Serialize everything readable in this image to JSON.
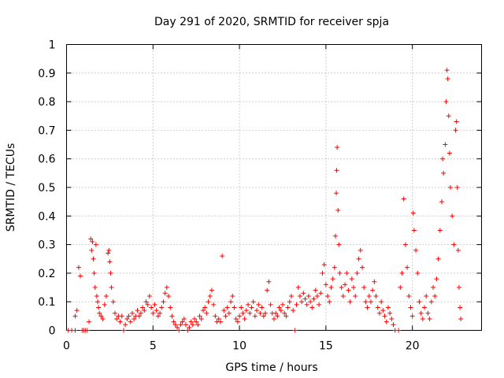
{
  "chart_data": {
    "type": "scatter",
    "title": "Day 291 of 2020, SRMTID for receiver spja",
    "xlabel": "GPS time / hours",
    "ylabel": "SRMTID / TECUs",
    "xlim": [
      0,
      24
    ],
    "ylim": [
      0,
      1
    ],
    "xticks": [
      0,
      5,
      10,
      15,
      20
    ],
    "yticks": [
      0,
      0.1,
      0.2,
      0.3,
      0.4,
      0.5,
      0.6,
      0.7,
      0.8,
      0.9,
      1
    ],
    "xtick_labels": [
      "0",
      "5",
      "10",
      "15",
      "20"
    ],
    "ytick_labels": [
      "0",
      "0.1",
      "0.2",
      "0.3",
      "0.4",
      "0.5",
      "0.6",
      "0.7",
      "0.8",
      "0.9",
      "1"
    ],
    "grid": true,
    "marker": "plus",
    "color": "#ff0000",
    "series": [
      {
        "name": "SRMTID",
        "points": [
          [
            0.1,
            0.0
          ],
          [
            0.3,
            0.0
          ],
          [
            0.5,
            0.0
          ],
          [
            0.5,
            0.05
          ],
          [
            0.6,
            0.07
          ],
          [
            0.7,
            0.22
          ],
          [
            0.8,
            0.19
          ],
          [
            0.9,
            0.0
          ],
          [
            1.0,
            0.0
          ],
          [
            1.1,
            0.0
          ],
          [
            1.2,
            0.0
          ],
          [
            1.3,
            0.03
          ],
          [
            1.4,
            0.32
          ],
          [
            1.45,
            0.28
          ],
          [
            1.5,
            0.31
          ],
          [
            1.55,
            0.25
          ],
          [
            1.6,
            0.2
          ],
          [
            1.65,
            0.15
          ],
          [
            1.7,
            0.3
          ],
          [
            1.75,
            0.12
          ],
          [
            1.8,
            0.1
          ],
          [
            1.85,
            0.08
          ],
          [
            1.9,
            0.06
          ],
          [
            2.0,
            0.05
          ],
          [
            2.1,
            0.04
          ],
          [
            2.2,
            0.09
          ],
          [
            2.3,
            0.12
          ],
          [
            2.4,
            0.27
          ],
          [
            2.45,
            0.28
          ],
          [
            2.5,
            0.24
          ],
          [
            2.55,
            0.2
          ],
          [
            2.6,
            0.15
          ],
          [
            2.7,
            0.1
          ],
          [
            2.8,
            0.06
          ],
          [
            2.9,
            0.04
          ],
          [
            3.0,
            0.05
          ],
          [
            3.1,
            0.03
          ],
          [
            3.2,
            0.05
          ],
          [
            3.3,
            0.0
          ],
          [
            3.4,
            0.02
          ],
          [
            3.5,
            0.04
          ],
          [
            3.6,
            0.05
          ],
          [
            3.7,
            0.03
          ],
          [
            3.8,
            0.06
          ],
          [
            3.9,
            0.04
          ],
          [
            4.0,
            0.05
          ],
          [
            4.1,
            0.07
          ],
          [
            4.2,
            0.05
          ],
          [
            4.3,
            0.06
          ],
          [
            4.4,
            0.08
          ],
          [
            4.5,
            0.07
          ],
          [
            4.6,
            0.1
          ],
          [
            4.7,
            0.09
          ],
          [
            4.8,
            0.12
          ],
          [
            4.9,
            0.08
          ],
          [
            5.0,
            0.06
          ],
          [
            5.1,
            0.09
          ],
          [
            5.2,
            0.07
          ],
          [
            5.3,
            0.05
          ],
          [
            5.4,
            0.06
          ],
          [
            5.5,
            0.08
          ],
          [
            5.6,
            0.1
          ],
          [
            5.7,
            0.13
          ],
          [
            5.8,
            0.15
          ],
          [
            5.9,
            0.12
          ],
          [
            6.0,
            0.08
          ],
          [
            6.1,
            0.05
          ],
          [
            6.2,
            0.03
          ],
          [
            6.3,
            0.02
          ],
          [
            6.4,
            0.01
          ],
          [
            6.5,
            0.0
          ],
          [
            6.6,
            0.02
          ],
          [
            6.7,
            0.03
          ],
          [
            6.8,
            0.04
          ],
          [
            6.9,
            0.02
          ],
          [
            7.0,
            0.0
          ],
          [
            7.1,
            0.01
          ],
          [
            7.2,
            0.03
          ],
          [
            7.3,
            0.02
          ],
          [
            7.4,
            0.04
          ],
          [
            7.5,
            0.03
          ],
          [
            7.6,
            0.02
          ],
          [
            7.7,
            0.05
          ],
          [
            7.8,
            0.04
          ],
          [
            7.9,
            0.07
          ],
          [
            8.0,
            0.08
          ],
          [
            8.1,
            0.06
          ],
          [
            8.2,
            0.1
          ],
          [
            8.3,
            0.12
          ],
          [
            8.4,
            0.14
          ],
          [
            8.5,
            0.09
          ],
          [
            8.6,
            0.05
          ],
          [
            8.7,
            0.03
          ],
          [
            8.8,
            0.04
          ],
          [
            8.9,
            0.03
          ],
          [
            9.0,
            0.26
          ],
          [
            9.1,
            0.07
          ],
          [
            9.2,
            0.05
          ],
          [
            9.3,
            0.08
          ],
          [
            9.4,
            0.06
          ],
          [
            9.5,
            0.1
          ],
          [
            9.6,
            0.12
          ],
          [
            9.7,
            0.08
          ],
          [
            9.8,
            0.04
          ],
          [
            9.9,
            0.03
          ],
          [
            10.0,
            0.05
          ],
          [
            10.1,
            0.08
          ],
          [
            10.2,
            0.06
          ],
          [
            10.3,
            0.04
          ],
          [
            10.4,
            0.07
          ],
          [
            10.5,
            0.09
          ],
          [
            10.6,
            0.06
          ],
          [
            10.7,
            0.08
          ],
          [
            10.8,
            0.1
          ],
          [
            10.9,
            0.05
          ],
          [
            11.0,
            0.07
          ],
          [
            11.1,
            0.09
          ],
          [
            11.2,
            0.06
          ],
          [
            11.3,
            0.08
          ],
          [
            11.4,
            0.05
          ],
          [
            11.5,
            0.06
          ],
          [
            11.6,
            0.14
          ],
          [
            11.7,
            0.17
          ],
          [
            11.8,
            0.09
          ],
          [
            11.9,
            0.06
          ],
          [
            12.0,
            0.04
          ],
          [
            12.1,
            0.06
          ],
          [
            12.2,
            0.05
          ],
          [
            12.3,
            0.08
          ],
          [
            12.4,
            0.07
          ],
          [
            12.5,
            0.09
          ],
          [
            12.6,
            0.06
          ],
          [
            12.7,
            0.05
          ],
          [
            12.8,
            0.08
          ],
          [
            12.9,
            0.1
          ],
          [
            13.0,
            0.12
          ],
          [
            13.1,
            0.07
          ],
          [
            13.2,
            0.0
          ],
          [
            13.3,
            0.09
          ],
          [
            13.4,
            0.15
          ],
          [
            13.5,
            0.12
          ],
          [
            13.6,
            0.1
          ],
          [
            13.7,
            0.13
          ],
          [
            13.8,
            0.11
          ],
          [
            13.9,
            0.09
          ],
          [
            14.0,
            0.12
          ],
          [
            14.1,
            0.1
          ],
          [
            14.2,
            0.08
          ],
          [
            14.3,
            0.11
          ],
          [
            14.4,
            0.14
          ],
          [
            14.5,
            0.12
          ],
          [
            14.6,
            0.09
          ],
          [
            14.7,
            0.13
          ],
          [
            14.8,
            0.2
          ],
          [
            14.9,
            0.23
          ],
          [
            15.0,
            0.16
          ],
          [
            15.1,
            0.12
          ],
          [
            15.2,
            0.1
          ],
          [
            15.3,
            0.15
          ],
          [
            15.4,
            0.18
          ],
          [
            15.5,
            0.22
          ],
          [
            15.55,
            0.33
          ],
          [
            15.6,
            0.48
          ],
          [
            15.62,
            0.56
          ],
          [
            15.65,
            0.64
          ],
          [
            15.7,
            0.42
          ],
          [
            15.75,
            0.3
          ],
          [
            15.8,
            0.2
          ],
          [
            15.9,
            0.15
          ],
          [
            16.0,
            0.12
          ],
          [
            16.1,
            0.16
          ],
          [
            16.2,
            0.2
          ],
          [
            16.3,
            0.14
          ],
          [
            16.4,
            0.1
          ],
          [
            16.5,
            0.18
          ],
          [
            16.6,
            0.15
          ],
          [
            16.7,
            0.12
          ],
          [
            16.8,
            0.2
          ],
          [
            16.9,
            0.25
          ],
          [
            17.0,
            0.28
          ],
          [
            17.1,
            0.22
          ],
          [
            17.2,
            0.15
          ],
          [
            17.3,
            0.1
          ],
          [
            17.4,
            0.08
          ],
          [
            17.5,
            0.12
          ],
          [
            17.6,
            0.1
          ],
          [
            17.7,
            0.14
          ],
          [
            17.8,
            0.17
          ],
          [
            17.9,
            0.12
          ],
          [
            18.0,
            0.08
          ],
          [
            18.1,
            0.06
          ],
          [
            18.2,
            0.1
          ],
          [
            18.3,
            0.07
          ],
          [
            18.4,
            0.05
          ],
          [
            18.5,
            0.03
          ],
          [
            18.6,
            0.08
          ],
          [
            18.7,
            0.06
          ],
          [
            18.8,
            0.04
          ],
          [
            18.9,
            0.02
          ],
          [
            19.0,
            0.0
          ],
          [
            19.2,
            0.0
          ],
          [
            19.3,
            0.15
          ],
          [
            19.4,
            0.2
          ],
          [
            19.5,
            0.46
          ],
          [
            19.6,
            0.3
          ],
          [
            19.7,
            0.22
          ],
          [
            19.8,
            0.12
          ],
          [
            19.9,
            0.08
          ],
          [
            20.0,
            0.05
          ],
          [
            20.05,
            0.41
          ],
          [
            20.1,
            0.35
          ],
          [
            20.2,
            0.28
          ],
          [
            20.3,
            0.2
          ],
          [
            20.4,
            0.1
          ],
          [
            20.5,
            0.06
          ],
          [
            20.6,
            0.04
          ],
          [
            20.7,
            0.08
          ],
          [
            20.8,
            0.12
          ],
          [
            20.9,
            0.06
          ],
          [
            21.0,
            0.04
          ],
          [
            21.1,
            0.1
          ],
          [
            21.2,
            0.15
          ],
          [
            21.3,
            0.12
          ],
          [
            21.4,
            0.18
          ],
          [
            21.5,
            0.25
          ],
          [
            21.6,
            0.35
          ],
          [
            21.7,
            0.45
          ],
          [
            21.75,
            0.6
          ],
          [
            21.8,
            0.55
          ],
          [
            21.9,
            0.65
          ],
          [
            21.95,
            0.8
          ],
          [
            22.0,
            0.91
          ],
          [
            22.05,
            0.88
          ],
          [
            22.1,
            0.75
          ],
          [
            22.15,
            0.62
          ],
          [
            22.2,
            0.5
          ],
          [
            22.3,
            0.4
          ],
          [
            22.4,
            0.3
          ],
          [
            22.5,
            0.7
          ],
          [
            22.55,
            0.73
          ],
          [
            22.6,
            0.5
          ],
          [
            22.65,
            0.28
          ],
          [
            22.7,
            0.15
          ],
          [
            22.75,
            0.08
          ],
          [
            22.8,
            0.04
          ]
        ]
      }
    ]
  }
}
